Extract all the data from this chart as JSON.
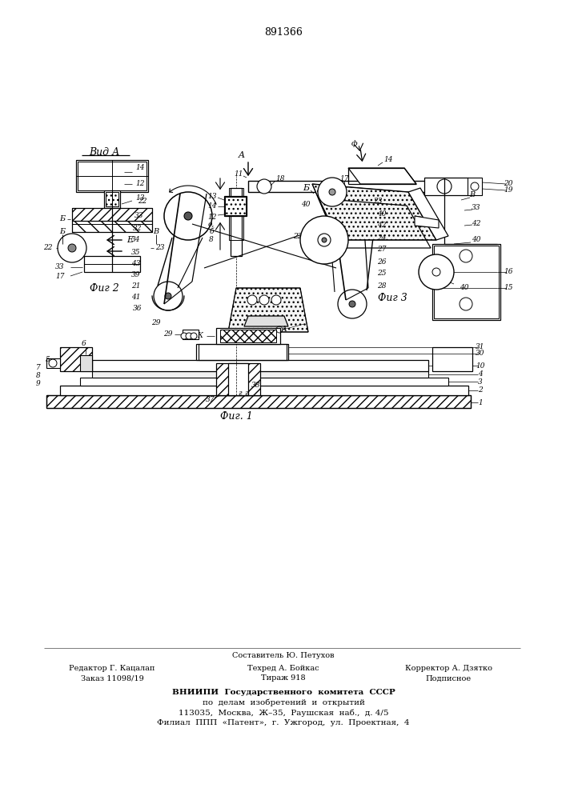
{
  "patent_number": "891366",
  "bg": "#ffffff",
  "lc": "#000000",
  "fig_width": 7.07,
  "fig_height": 10.0,
  "footer": {
    "line1": "Составитель Ю. Петухов",
    "line2_left": "Редактор Г. Кацалап",
    "line2_mid": "Техред А. Бойкас",
    "line2_right": "Корректор А. Дзятко",
    "line3_left": "Заказ 11098/19",
    "line3_mid": "Тираж 918",
    "line3_right": "Подписное",
    "vniiipi1": "ВНИИПИ  Государственного  комитета  СССР",
    "vniiipi2": "по  делам  изобретений  и  открытий",
    "vniiipi3": "113035,  Москва,  Ж–35,  Раушская  наб.,  д. 4/5",
    "vniiipi4": "Филиал  ППП  «Патент»,  г.  Ужгород,  ул.  Проектная,  4"
  }
}
